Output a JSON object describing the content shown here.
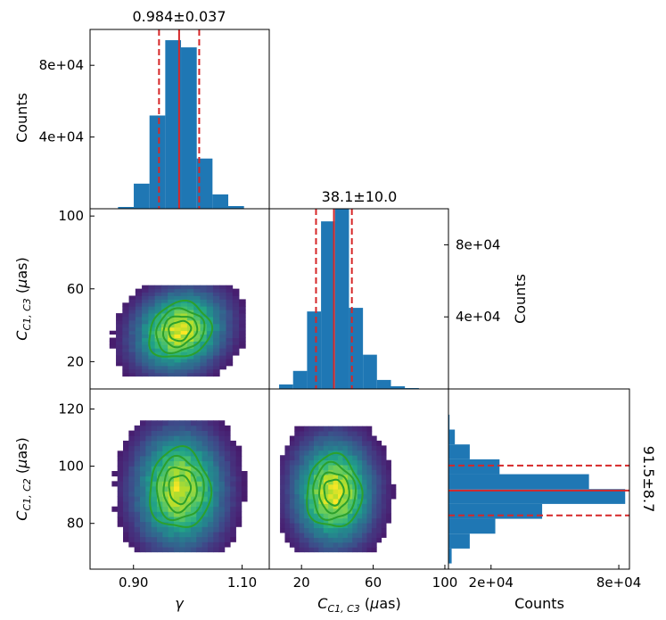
{
  "colors": {
    "hist": "#1f77b4",
    "median": "#d62728",
    "contour": "#2ca02c",
    "background": "#ffffff"
  },
  "chart_data": [
    {
      "id": "gamma_hist",
      "type": "bar",
      "orientation": "vertical",
      "title": "0.984±0.037",
      "xlabel": "",
      "ylabel": "Counts",
      "xlim": [
        0.82,
        1.15
      ],
      "ylim": [
        0,
        100000
      ],
      "yticks": [
        {
          "v": 40000,
          "label": "4e+04"
        },
        {
          "v": 80000,
          "label": "8e+04"
        }
      ],
      "bin_edges": [
        0.8715,
        0.9005,
        0.9295,
        0.9585,
        0.9875,
        1.0165,
        1.0455,
        1.0745,
        1.1035,
        1.1325
      ],
      "values": [
        1000,
        14000,
        52000,
        94000,
        90000,
        28000,
        8000,
        1500,
        200
      ],
      "median": 0.984,
      "lower": 0.947,
      "upper": 1.021
    },
    {
      "id": "c13_hist",
      "type": "bar",
      "orientation": "vertical",
      "title": "38.1±10.0",
      "xlabel": "",
      "ylabel": "Counts",
      "xlim": [
        2,
        102
      ],
      "ylim": [
        0,
        100000
      ],
      "yticks": [
        {
          "v": 40000,
          "label": "4e+04"
        },
        {
          "v": 80000,
          "label": "8e+04"
        }
      ],
      "bin_edges": [
        7.5,
        15.3,
        23.1,
        30.9,
        38.7,
        46.5,
        54.3,
        62.1,
        69.9,
        77.7,
        85.5
      ],
      "values": [
        2500,
        10000,
        43000,
        93000,
        100000,
        45000,
        19000,
        5000,
        1500,
        500
      ],
      "median": 38.1,
      "lower": 28.1,
      "upper": 48.1
    },
    {
      "id": "c12_hist",
      "type": "bar",
      "orientation": "horizontal",
      "title": "91.5±8.7",
      "xlabel": "Counts",
      "ylabel": "",
      "xlim": [
        0,
        85000
      ],
      "ylim": [
        64,
        127
      ],
      "xticks": [
        {
          "v": 20000,
          "label": "2e+04"
        },
        {
          "v": 80000,
          "label": "8e+04"
        }
      ],
      "bin_edges": [
        66.0,
        71.2,
        76.4,
        81.6,
        86.8,
        92.0,
        97.2,
        102.4,
        107.6,
        112.8,
        118.0
      ],
      "values": [
        1500,
        10000,
        22000,
        44000,
        83000,
        66000,
        24000,
        10000,
        3000,
        500
      ],
      "median": 91.5,
      "lower": 82.8,
      "upper": 100.2
    },
    {
      "id": "gamma_c13_2d",
      "type": "heatmap",
      "xlim": [
        0.82,
        1.15
      ],
      "ylim": [
        5,
        104
      ],
      "yticks": [
        {
          "v": 20,
          "label": "20"
        },
        {
          "v": 60,
          "label": "60"
        },
        {
          "v": 100,
          "label": "100"
        }
      ],
      "ylabel": "C_{C1,C3} (μas)",
      "center": [
        0.985,
        37
      ],
      "sigma": [
        0.043,
        11.5
      ],
      "rho": 0.15,
      "x_range": [
        0.82,
        1.13
      ],
      "y_range": [
        12,
        62
      ],
      "contour_levels": [
        0.25,
        0.5,
        0.75,
        0.9
      ]
    },
    {
      "id": "gamma_c12_2d",
      "type": "heatmap",
      "xlim": [
        0.82,
        1.15
      ],
      "ylim": [
        64,
        127
      ],
      "xticks": [
        {
          "v": 0.9,
          "label": "0.90"
        },
        {
          "v": 1.1,
          "label": "1.10"
        }
      ],
      "yticks": [
        {
          "v": 80,
          "label": "80"
        },
        {
          "v": 100,
          "label": "100"
        },
        {
          "v": 120,
          "label": "120"
        }
      ],
      "xlabel": "γ",
      "ylabel": "C_{C1,C2} (μas)",
      "center": [
        0.985,
        92
      ],
      "sigma": [
        0.042,
        10.5
      ],
      "rho": 0.0,
      "x_range": [
        0.86,
        1.13
      ],
      "y_range": [
        70,
        116
      ],
      "contour_levels": [
        0.25,
        0.5,
        0.75,
        0.9
      ]
    },
    {
      "id": "c13_c12_2d",
      "type": "heatmap",
      "xlim": [
        2,
        102
      ],
      "ylim": [
        64,
        127
      ],
      "xticks": [
        {
          "v": 20,
          "label": "20"
        },
        {
          "v": 60,
          "label": "60"
        },
        {
          "v": 100,
          "label": "100"
        }
      ],
      "xlabel": "C_{C1,C3} (μas)",
      "center": [
        38,
        91
      ],
      "sigma": [
        11.5,
        9.5
      ],
      "rho": 0.0,
      "x_range": [
        8,
        78
      ],
      "y_range": [
        70,
        114
      ],
      "contour_levels": [
        0.25,
        0.5,
        0.75,
        0.9
      ]
    }
  ]
}
